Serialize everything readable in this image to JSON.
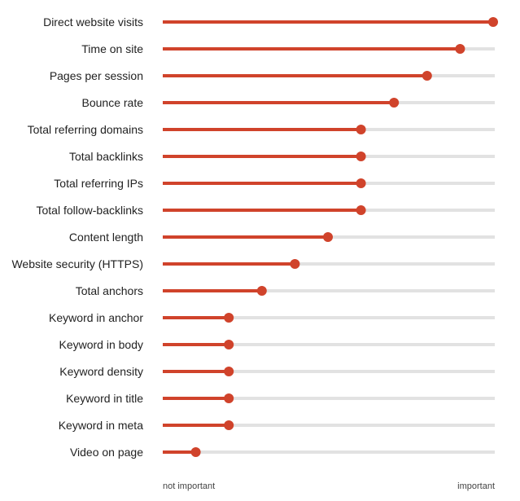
{
  "chart_data": {
    "type": "bar",
    "style": "lollipop",
    "orientation": "horizontal",
    "title": "",
    "xlabel": "",
    "ylabel": "",
    "x_axis_min_label": "not important",
    "x_axis_max_label": "important",
    "xlim": [
      0,
      10
    ],
    "grid": false,
    "legend": "none",
    "colors": {
      "fill": "#d0432b",
      "track": "#e2e2e2",
      "text": "#222222"
    },
    "categories": [
      "Direct website visits",
      "Time on site",
      "Pages per session",
      "Bounce rate",
      "Total referring domains",
      "Total backlinks",
      "Total referring IPs",
      "Total follow-backlinks",
      "Content length",
      "Website security (HTTPS)",
      "Total anchors",
      "Keyword in anchor",
      "Keyword in body",
      "Keyword density",
      "Keyword in title",
      "Keyword in meta",
      "Video on page"
    ],
    "values": [
      10,
      9,
      8,
      7,
      6,
      6,
      6,
      6,
      5,
      4,
      3,
      2,
      2,
      2,
      2,
      2,
      1
    ]
  }
}
